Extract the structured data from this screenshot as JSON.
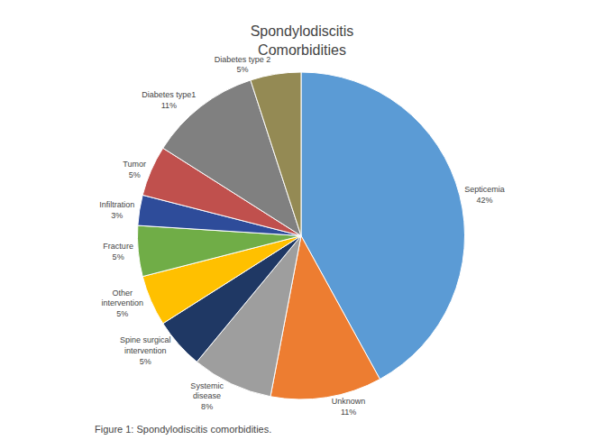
{
  "chart_data": {
    "type": "pie",
    "title": "Spondylodiscitis\nComorbidities",
    "labels": [
      "Septicemia\n42%",
      "Unknown\n11%",
      "Systemic\ndisease\n8%",
      "Spine surgical\nintervention\n5%",
      "Other\nintervention\n5%",
      "Fracture\n5%",
      "Infiltration\n3%",
      "Tumor\n5%",
      "Diabetes type1\n11%",
      "Diabetes type 2\n5%"
    ],
    "values": [
      42,
      11,
      8,
      5,
      5,
      5,
      3,
      5,
      11,
      5
    ],
    "colors": [
      "#5B9BD5",
      "#ED7D31",
      "#9E9E9E",
      "#1F3864",
      "#FFC000",
      "#70AD47",
      "#2E4C9A",
      "#C0504D",
      "#808080",
      "#948A54"
    ],
    "annotations": [
      "Figure 1: Spondylodiscitis comorbidities."
    ],
    "legend": false
  }
}
